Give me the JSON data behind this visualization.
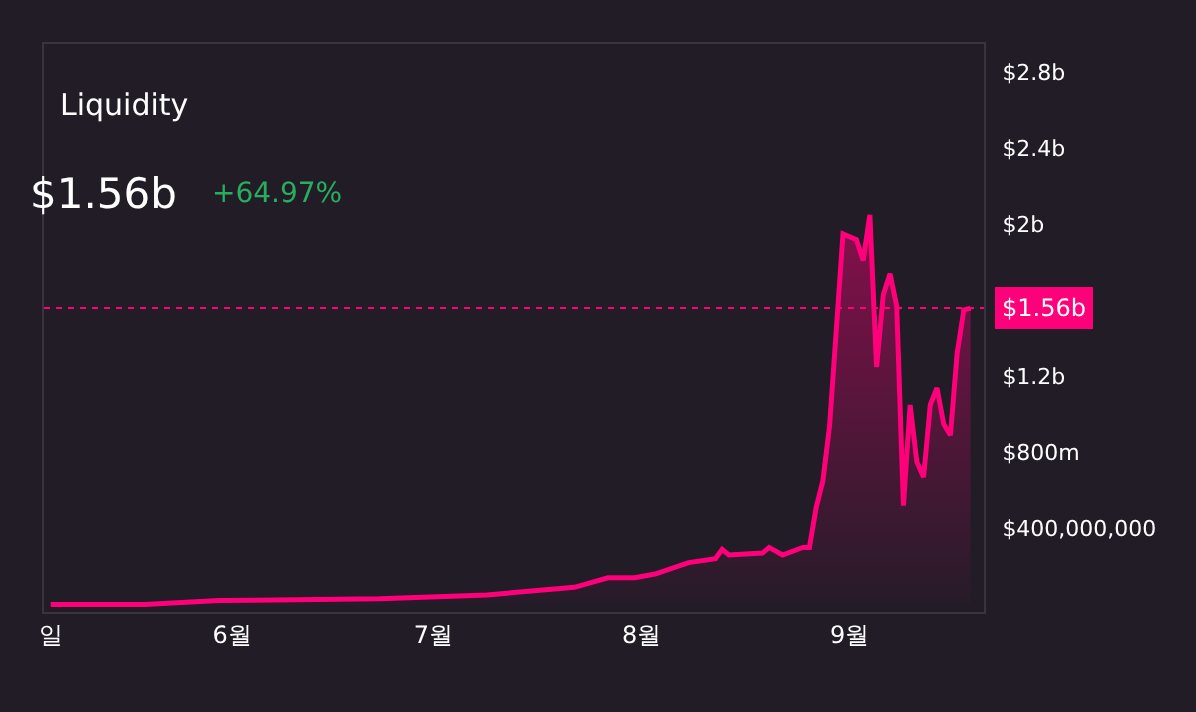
{
  "chart_data": {
    "type": "area",
    "title": "Liquidity",
    "subtitle": "$1.56b",
    "annotations": [
      "+64.97%"
    ],
    "x": [
      "--05-05",
      "--05-19",
      "--05-30",
      "--06-23",
      "--07-09",
      "--07-22",
      "--07-27",
      "--07-31",
      "--08-03",
      "--08-08",
      "--08-12",
      "--08-13",
      "--08-14",
      "--08-19",
      "--08-20",
      "--08-22",
      "--08-25",
      "--08-26",
      "--08-27",
      "--08-28",
      "--08-29",
      "--08-31",
      "--09-02",
      "--09-03",
      "--09-04",
      "--09-05",
      "--09-06",
      "--09-07",
      "--09-08",
      "--09-09",
      "--09-10",
      "--09-11",
      "--09-12",
      "--09-13",
      "--09-14",
      "--09-15",
      "--09-16",
      "--09-17",
      "--09-18",
      "--09-19"
    ],
    "series": [
      {
        "color": "#ff007a",
        "values": [
          0,
          0,
          20000000,
          30000000,
          50000000,
          90000000,
          140000000,
          140000000,
          160000000,
          220000000,
          240000000,
          290000000,
          260000000,
          270000000,
          300000000,
          260000000,
          300000000,
          300000000,
          510000000,
          650000000,
          940000000,
          1950000000,
          1920000000,
          1810000000,
          2050000000,
          1250000000,
          1630000000,
          1740000000,
          1570000000,
          520000000,
          1050000000,
          750000000,
          670000000,
          1050000000,
          1140000000,
          950000000,
          890000000,
          1320000000,
          1550000000,
          1560000000
        ]
      }
    ],
    "xlim": [
      "--05-04",
      "--09-21"
    ],
    "xticks": [
      {
        "value": "--05-05",
        "label": "일"
      },
      {
        "value": "--06-01",
        "label": "6월"
      },
      {
        "value": "--07-01",
        "label": "7월"
      },
      {
        "value": "--08-01",
        "label": "8월"
      },
      {
        "value": "--09-01",
        "label": "9월"
      }
    ],
    "ylim": [
      -40000000,
      2950000000
    ],
    "yticks": [
      {
        "value": 400000000,
        "label": "$400,000,000"
      },
      {
        "value": 800000000,
        "label": "$800m"
      },
      {
        "value": 1200000000,
        "label": "$1.2b"
      },
      {
        "value": 2000000000,
        "label": "$2b"
      },
      {
        "value": 2400000000,
        "label": "$2.4b"
      },
      {
        "value": 2800000000,
        "label": "$2.8b"
      }
    ],
    "ref_lines": [
      {
        "axis": "y",
        "value": 1560000000,
        "label": "$1.56b",
        "color": "#ff007a",
        "line_style": "dotted"
      }
    ],
    "grid": false,
    "legend": false
  }
}
